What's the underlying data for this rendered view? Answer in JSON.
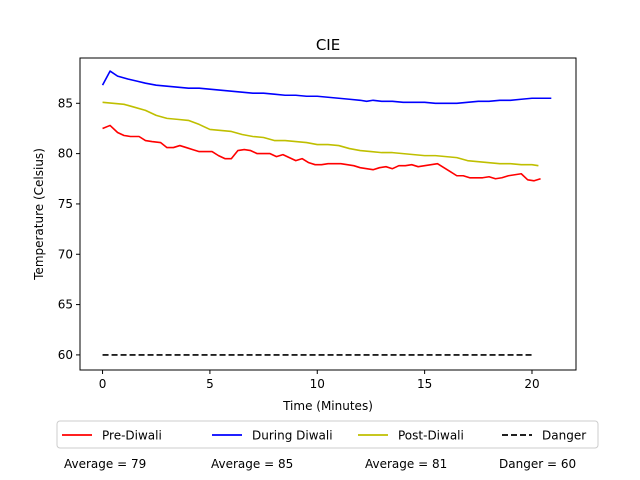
{
  "chart_data": {
    "type": "line",
    "title": "CIE",
    "xlabel": "Time (Minutes)",
    "ylabel": "Temperature (Celsius)",
    "xlim": [
      -1.05,
      22.05
    ],
    "ylim": [
      58.5,
      89.5
    ],
    "xticks": [
      0,
      5,
      10,
      15,
      20
    ],
    "yticks": [
      60,
      65,
      70,
      75,
      80,
      85
    ],
    "grid": false,
    "legend_position": "bottom",
    "series": [
      {
        "name": "Pre-Diwali",
        "color": "#ff0000",
        "dash": "solid",
        "x": [
          0,
          0.35,
          0.7,
          1.0,
          1.3,
          1.7,
          2.0,
          2.3,
          2.7,
          3.0,
          3.3,
          3.6,
          3.9,
          4.2,
          4.5,
          4.8,
          5.1,
          5.4,
          5.7,
          6.0,
          6.3,
          6.6,
          6.9,
          7.2,
          7.5,
          7.8,
          8.1,
          8.4,
          8.7,
          9.0,
          9.3,
          9.6,
          9.9,
          10.2,
          10.5,
          10.8,
          11.1,
          11.4,
          11.7,
          12.0,
          12.3,
          12.6,
          12.9,
          13.2,
          13.5,
          13.8,
          14.1,
          14.4,
          14.7,
          15.0,
          15.3,
          15.6,
          15.9,
          16.2,
          16.5,
          16.8,
          17.1,
          17.4,
          17.7,
          18.0,
          18.3,
          18.6,
          18.9,
          19.2,
          19.5,
          19.8,
          20.1,
          20.4
        ],
        "y": [
          82.5,
          82.8,
          82.1,
          81.8,
          81.7,
          81.7,
          81.3,
          81.2,
          81.1,
          80.6,
          80.6,
          80.8,
          80.6,
          80.4,
          80.2,
          80.2,
          80.2,
          79.8,
          79.5,
          79.5,
          80.3,
          80.4,
          80.3,
          80.0,
          80.0,
          80.0,
          79.7,
          79.9,
          79.6,
          79.3,
          79.5,
          79.1,
          78.9,
          78.9,
          79.0,
          79.0,
          79.0,
          78.9,
          78.8,
          78.6,
          78.5,
          78.4,
          78.6,
          78.7,
          78.5,
          78.8,
          78.8,
          78.9,
          78.7,
          78.8,
          78.9,
          79.0,
          78.6,
          78.2,
          77.8,
          77.8,
          77.6,
          77.6,
          77.6,
          77.7,
          77.5,
          77.6,
          77.8,
          77.9,
          78.0,
          77.4,
          77.3,
          77.5
        ]
      },
      {
        "name": "During Diwali",
        "color": "#0000ff",
        "dash": "solid",
        "x": [
          0,
          0.35,
          0.7,
          1.2,
          1.6,
          2.0,
          2.5,
          3.0,
          3.5,
          4.0,
          4.5,
          5.0,
          5.5,
          6.0,
          6.5,
          7.0,
          7.5,
          8.0,
          8.5,
          9.0,
          9.5,
          10.0,
          10.5,
          11.0,
          11.5,
          12.0,
          12.3,
          12.6,
          13.0,
          13.5,
          14.0,
          14.5,
          15.0,
          15.5,
          16.0,
          16.5,
          17.0,
          17.5,
          18.0,
          18.5,
          19.0,
          19.5,
          20.0,
          20.5,
          20.9
        ],
        "y": [
          86.8,
          88.2,
          87.7,
          87.4,
          87.2,
          87.0,
          86.8,
          86.7,
          86.6,
          86.5,
          86.5,
          86.4,
          86.3,
          86.2,
          86.1,
          86.0,
          86.0,
          85.9,
          85.8,
          85.8,
          85.7,
          85.7,
          85.6,
          85.5,
          85.4,
          85.3,
          85.2,
          85.3,
          85.2,
          85.2,
          85.1,
          85.1,
          85.1,
          85.0,
          85.0,
          85.0,
          85.1,
          85.2,
          85.2,
          85.3,
          85.3,
          85.4,
          85.5,
          85.5,
          85.5
        ]
      },
      {
        "name": "Post-Diwali",
        "color": "#bfbf00",
        "dash": "solid",
        "x": [
          0,
          0.5,
          1.0,
          1.5,
          2.0,
          2.5,
          3.0,
          3.5,
          4.0,
          4.5,
          5.0,
          5.5,
          6.0,
          6.5,
          7.0,
          7.5,
          8.0,
          8.5,
          9.0,
          9.5,
          10.0,
          10.5,
          11.0,
          11.5,
          12.0,
          12.5,
          13.0,
          13.5,
          14.0,
          14.5,
          15.0,
          15.5,
          16.0,
          16.5,
          17.0,
          17.5,
          18.0,
          18.5,
          19.0,
          19.5,
          20.0,
          20.3
        ],
        "y": [
          85.1,
          85.0,
          84.9,
          84.6,
          84.3,
          83.8,
          83.5,
          83.4,
          83.3,
          82.9,
          82.4,
          82.3,
          82.2,
          81.9,
          81.7,
          81.6,
          81.3,
          81.3,
          81.2,
          81.1,
          80.9,
          80.9,
          80.8,
          80.5,
          80.3,
          80.2,
          80.1,
          80.1,
          80.0,
          79.9,
          79.8,
          79.8,
          79.7,
          79.6,
          79.3,
          79.2,
          79.1,
          79.0,
          79.0,
          78.9,
          78.9,
          78.8
        ]
      },
      {
        "name": "Danger",
        "color": "#000000",
        "dash": "dashed",
        "x": [
          0,
          20
        ],
        "y": [
          60,
          60
        ]
      }
    ],
    "annotations": [
      "Average = 79",
      "Average = 85",
      "Average = 81",
      "Danger = 60"
    ]
  }
}
